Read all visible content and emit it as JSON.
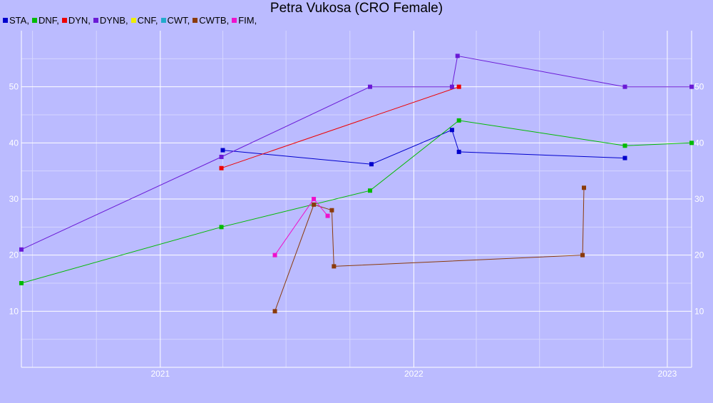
{
  "chart_data": {
    "type": "line",
    "title": "Petra Vukosa (CRO Female)",
    "xlabel": "",
    "ylabel": "",
    "xlim": [
      "2020-06-15",
      "2023-02-05"
    ],
    "ylim": [
      0,
      60
    ],
    "x_ticks": [
      "2021-01-01",
      "2022-01-01",
      "2023-01-01"
    ],
    "x_tick_labels": [
      "2021",
      "2022",
      "2023"
    ],
    "y_ticks": [
      10,
      20,
      30,
      40,
      50
    ],
    "y_tick_labels": [
      "10",
      "20",
      "30",
      "40",
      "50"
    ],
    "grid": true,
    "legend_position": "top-left",
    "legend": [
      {
        "name": "STA,",
        "color": "#0000cc"
      },
      {
        "name": "DNF,",
        "color": "#00bb00"
      },
      {
        "name": "DYN,",
        "color": "#ee0000"
      },
      {
        "name": "DYNB,",
        "color": "#6a1ad6"
      },
      {
        "name": "CNF,",
        "color": "#eeee00"
      },
      {
        "name": "CWT,",
        "color": "#22aacc"
      },
      {
        "name": "CWTB,",
        "color": "#8b3a0a"
      },
      {
        "name": "FIM,",
        "color": "#ee11cc"
      }
    ],
    "series": [
      {
        "name": "STA",
        "color": "#0000cc",
        "points": [
          {
            "x": "2021-04-01",
            "y": 38.7
          },
          {
            "x": "2021-11-01",
            "y": 36.2
          },
          {
            "x": "2022-02-25",
            "y": 42.3
          },
          {
            "x": "2022-03-07",
            "y": 38.4
          },
          {
            "x": "2022-11-01",
            "y": 37.3
          }
        ]
      },
      {
        "name": "DNF",
        "color": "#00bb00",
        "points": [
          {
            "x": "2020-06-15",
            "y": 15
          },
          {
            "x": "2021-03-30",
            "y": 25
          },
          {
            "x": "2021-10-30",
            "y": 31.5
          },
          {
            "x": "2022-03-07",
            "y": 44
          },
          {
            "x": "2022-11-01",
            "y": 39.5
          },
          {
            "x": "2023-02-05",
            "y": 40
          }
        ]
      },
      {
        "name": "DYN",
        "color": "#ee0000",
        "points": [
          {
            "x": "2021-03-30",
            "y": 35.5
          },
          {
            "x": "2022-03-07",
            "y": 50
          }
        ]
      },
      {
        "name": "DYNB",
        "color": "#6a1ad6",
        "points": [
          {
            "x": "2020-06-15",
            "y": 21
          },
          {
            "x": "2021-03-30",
            "y": 37.5
          },
          {
            "x": "2021-10-30",
            "y": 50
          },
          {
            "x": "2022-02-25",
            "y": 50
          },
          {
            "x": "2022-03-05",
            "y": 55.5
          },
          {
            "x": "2022-11-01",
            "y": 50
          },
          {
            "x": "2023-02-05",
            "y": 50
          }
        ]
      },
      {
        "name": "CWTB",
        "color": "#8b3a0a",
        "points": [
          {
            "x": "2021-06-15",
            "y": 10
          },
          {
            "x": "2021-08-10",
            "y": 29
          },
          {
            "x": "2021-09-05",
            "y": 28
          },
          {
            "x": "2021-09-08",
            "y": 18
          },
          {
            "x": "2022-09-01",
            "y": 20
          },
          {
            "x": "2022-09-03",
            "y": 32
          }
        ]
      },
      {
        "name": "FIM",
        "color": "#ee11cc",
        "points": [
          {
            "x": "2021-06-15",
            "y": 20
          },
          {
            "x": "2021-08-10",
            "y": 30
          },
          {
            "x": "2021-08-30",
            "y": 27
          }
        ]
      }
    ]
  }
}
